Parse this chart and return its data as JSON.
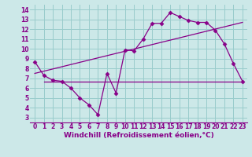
{
  "bg_color": "#cce8e8",
  "grid_color": "#99cccc",
  "line_color": "#880088",
  "line_width": 0.9,
  "marker": "D",
  "marker_size": 2.5,
  "xlim": [
    -0.5,
    23.5
  ],
  "ylim": [
    2.5,
    14.5
  ],
  "yticks": [
    3,
    4,
    5,
    6,
    7,
    8,
    9,
    10,
    11,
    12,
    13,
    14
  ],
  "xticks": [
    0,
    1,
    2,
    3,
    4,
    5,
    6,
    7,
    8,
    9,
    10,
    11,
    12,
    13,
    14,
    15,
    16,
    17,
    18,
    19,
    20,
    21,
    22,
    23
  ],
  "xlabel": "Windchill (Refroidissement éolien,°C)",
  "xlabel_fontsize": 6.5,
  "tick_fontsize": 5.5,
  "series1_x": [
    0,
    1,
    2,
    3,
    4,
    5,
    6,
    7,
    8,
    9,
    10,
    11,
    12,
    13,
    14,
    15,
    16,
    17,
    18,
    19,
    20,
    21,
    22,
    23
  ],
  "series1_y": [
    8.7,
    7.3,
    6.8,
    6.7,
    6.0,
    5.0,
    4.3,
    3.3,
    7.5,
    5.5,
    9.9,
    9.8,
    11.0,
    12.6,
    12.6,
    13.7,
    13.3,
    12.9,
    12.7,
    12.7,
    11.9,
    10.5,
    8.5,
    6.7
  ],
  "series2_x": [
    1,
    23
  ],
  "series2_y": [
    6.7,
    6.7
  ],
  "series3_x": [
    0,
    23
  ],
  "series3_y": [
    7.5,
    12.7
  ]
}
